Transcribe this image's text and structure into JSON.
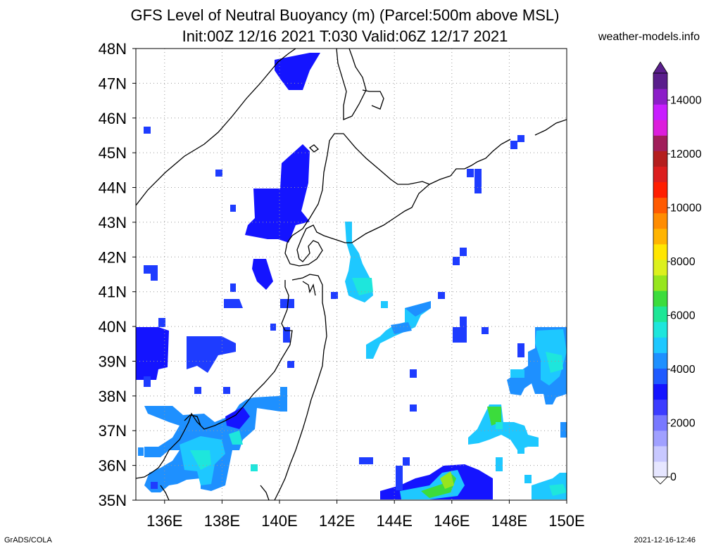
{
  "header": {
    "title_line1": "GFS Level of Neutral Buoyancy (m) (Parcel:500m above MSL)",
    "title_line2": "Init:00Z 12/16 2021 T:030 Valid:06Z 12/17 2021",
    "site": "weather-models.info"
  },
  "axes": {
    "lon_labels": [
      "136E",
      "138E",
      "140E",
      "142E",
      "144E",
      "146E",
      "148E",
      "150E"
    ],
    "lat_labels": [
      "35N",
      "36N",
      "37N",
      "38N",
      "39N",
      "40N",
      "41N",
      "42N",
      "43N",
      "44N",
      "45N",
      "46N",
      "47N",
      "48N"
    ]
  },
  "colorbar": {
    "labels": [
      "0",
      "2000",
      "4000",
      "6000",
      "8000",
      "10000",
      "12000",
      "14000"
    ],
    "colors": [
      "#e6e6ff",
      "#c8c8ff",
      "#a0a0ff",
      "#7878ff",
      "#3c3cff",
      "#1414ff",
      "#1e5aff",
      "#1e90ff",
      "#1ec8ff",
      "#1ee6dc",
      "#1ee696",
      "#3cdc3c",
      "#96e61e",
      "#dcf01e",
      "#ffe600",
      "#ffb400",
      "#ff8c00",
      "#ff5a00",
      "#ff1e00",
      "#dc1e1e",
      "#b41e1e",
      "#a01e5a",
      "#dc1edc",
      "#c81eff",
      "#8c1ec8",
      "#5a1e8c"
    ]
  },
  "footer": {
    "credit": "GrADS/COLA",
    "timestamp": "2021-12-16-12:46"
  }
}
